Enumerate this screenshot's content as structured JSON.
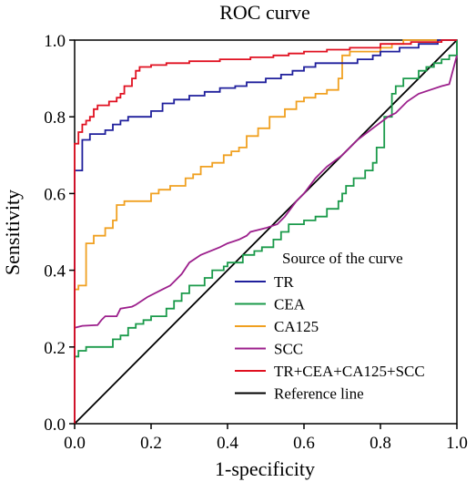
{
  "chart_data": {
    "type": "line",
    "title": "ROC curve",
    "xlabel": "1-specificity",
    "ylabel": "Sensitivity",
    "xlim": [
      0,
      1
    ],
    "ylim": [
      0,
      1
    ],
    "x_ticks": [
      "0.0",
      "0.2",
      "0.4",
      "0.6",
      "0.8",
      "1.0"
    ],
    "y_ticks": [
      "0.0",
      "0.2",
      "0.4",
      "0.6",
      "0.8",
      "1.0"
    ],
    "grid": false,
    "legend": {
      "title": "Source of the curve",
      "placement": "bottom-right"
    },
    "series": [
      {
        "name": "TR",
        "color": "#1f1f9c",
        "points": [
          [
            0,
            0
          ],
          [
            0,
            0.66
          ],
          [
            0.02,
            0.66
          ],
          [
            0.02,
            0.74
          ],
          [
            0.04,
            0.74
          ],
          [
            0.04,
            0.755
          ],
          [
            0.08,
            0.755
          ],
          [
            0.08,
            0.765
          ],
          [
            0.1,
            0.765
          ],
          [
            0.1,
            0.78
          ],
          [
            0.12,
            0.78
          ],
          [
            0.12,
            0.79
          ],
          [
            0.14,
            0.79
          ],
          [
            0.14,
            0.8
          ],
          [
            0.2,
            0.8
          ],
          [
            0.2,
            0.815
          ],
          [
            0.23,
            0.815
          ],
          [
            0.23,
            0.835
          ],
          [
            0.26,
            0.835
          ],
          [
            0.26,
            0.845
          ],
          [
            0.3,
            0.845
          ],
          [
            0.3,
            0.855
          ],
          [
            0.34,
            0.855
          ],
          [
            0.34,
            0.865
          ],
          [
            0.38,
            0.865
          ],
          [
            0.38,
            0.875
          ],
          [
            0.42,
            0.875
          ],
          [
            0.42,
            0.88
          ],
          [
            0.45,
            0.88
          ],
          [
            0.45,
            0.89
          ],
          [
            0.5,
            0.89
          ],
          [
            0.5,
            0.9
          ],
          [
            0.54,
            0.9
          ],
          [
            0.54,
            0.91
          ],
          [
            0.57,
            0.91
          ],
          [
            0.57,
            0.92
          ],
          [
            0.6,
            0.92
          ],
          [
            0.6,
            0.93
          ],
          [
            0.63,
            0.93
          ],
          [
            0.63,
            0.94
          ],
          [
            0.74,
            0.94
          ],
          [
            0.74,
            0.95
          ],
          [
            0.78,
            0.95
          ],
          [
            0.78,
            0.96
          ],
          [
            0.8,
            0.96
          ],
          [
            0.8,
            0.97
          ],
          [
            0.85,
            0.97
          ],
          [
            0.85,
            0.98
          ],
          [
            0.9,
            0.98
          ],
          [
            0.9,
            0.99
          ],
          [
            0.95,
            0.99
          ],
          [
            0.95,
            1.0
          ],
          [
            1.0,
            1.0
          ]
        ]
      },
      {
        "name": "CEA",
        "color": "#1a9a4a",
        "points": [
          [
            0,
            0.175
          ],
          [
            0.01,
            0.175
          ],
          [
            0.01,
            0.19
          ],
          [
            0.03,
            0.19
          ],
          [
            0.03,
            0.2
          ],
          [
            0.1,
            0.2
          ],
          [
            0.1,
            0.22
          ],
          [
            0.12,
            0.22
          ],
          [
            0.12,
            0.23
          ],
          [
            0.14,
            0.23
          ],
          [
            0.14,
            0.25
          ],
          [
            0.16,
            0.25
          ],
          [
            0.16,
            0.26
          ],
          [
            0.18,
            0.26
          ],
          [
            0.18,
            0.27
          ],
          [
            0.2,
            0.27
          ],
          [
            0.2,
            0.28
          ],
          [
            0.24,
            0.28
          ],
          [
            0.24,
            0.3
          ],
          [
            0.26,
            0.3
          ],
          [
            0.26,
            0.32
          ],
          [
            0.28,
            0.32
          ],
          [
            0.28,
            0.34
          ],
          [
            0.3,
            0.34
          ],
          [
            0.3,
            0.36
          ],
          [
            0.34,
            0.36
          ],
          [
            0.34,
            0.38
          ],
          [
            0.36,
            0.38
          ],
          [
            0.36,
            0.4
          ],
          [
            0.39,
            0.4
          ],
          [
            0.39,
            0.41
          ],
          [
            0.4,
            0.41
          ],
          [
            0.4,
            0.42
          ],
          [
            0.44,
            0.42
          ],
          [
            0.44,
            0.44
          ],
          [
            0.47,
            0.44
          ],
          [
            0.47,
            0.45
          ],
          [
            0.49,
            0.45
          ],
          [
            0.49,
            0.46
          ],
          [
            0.52,
            0.46
          ],
          [
            0.52,
            0.48
          ],
          [
            0.54,
            0.48
          ],
          [
            0.54,
            0.5
          ],
          [
            0.56,
            0.5
          ],
          [
            0.56,
            0.52
          ],
          [
            0.6,
            0.52
          ],
          [
            0.6,
            0.53
          ],
          [
            0.63,
            0.53
          ],
          [
            0.63,
            0.54
          ],
          [
            0.66,
            0.54
          ],
          [
            0.66,
            0.56
          ],
          [
            0.69,
            0.56
          ],
          [
            0.69,
            0.58
          ],
          [
            0.7,
            0.58
          ],
          [
            0.7,
            0.6
          ],
          [
            0.71,
            0.6
          ],
          [
            0.71,
            0.62
          ],
          [
            0.73,
            0.62
          ],
          [
            0.73,
            0.64
          ],
          [
            0.76,
            0.64
          ],
          [
            0.76,
            0.66
          ],
          [
            0.78,
            0.66
          ],
          [
            0.78,
            0.68
          ],
          [
            0.79,
            0.68
          ],
          [
            0.79,
            0.72
          ],
          [
            0.81,
            0.72
          ],
          [
            0.81,
            0.8
          ],
          [
            0.83,
            0.8
          ],
          [
            0.83,
            0.86
          ],
          [
            0.84,
            0.86
          ],
          [
            0.84,
            0.88
          ],
          [
            0.86,
            0.88
          ],
          [
            0.86,
            0.9
          ],
          [
            0.9,
            0.9
          ],
          [
            0.9,
            0.92
          ],
          [
            0.92,
            0.92
          ],
          [
            0.92,
            0.93
          ],
          [
            0.94,
            0.93
          ],
          [
            0.94,
            0.94
          ],
          [
            0.96,
            0.94
          ],
          [
            0.96,
            0.95
          ],
          [
            0.98,
            0.95
          ],
          [
            0.98,
            0.96
          ],
          [
            1.0,
            0.96
          ],
          [
            1.0,
            1.0
          ]
        ]
      },
      {
        "name": "CA125",
        "color": "#f0a020",
        "points": [
          [
            0,
            0
          ],
          [
            0,
            0.35
          ],
          [
            0.01,
            0.35
          ],
          [
            0.01,
            0.36
          ],
          [
            0.03,
            0.36
          ],
          [
            0.03,
            0.47
          ],
          [
            0.05,
            0.47
          ],
          [
            0.05,
            0.49
          ],
          [
            0.08,
            0.49
          ],
          [
            0.08,
            0.51
          ],
          [
            0.1,
            0.51
          ],
          [
            0.1,
            0.53
          ],
          [
            0.11,
            0.53
          ],
          [
            0.11,
            0.57
          ],
          [
            0.13,
            0.57
          ],
          [
            0.13,
            0.58
          ],
          [
            0.2,
            0.58
          ],
          [
            0.2,
            0.6
          ],
          [
            0.22,
            0.6
          ],
          [
            0.22,
            0.61
          ],
          [
            0.25,
            0.61
          ],
          [
            0.25,
            0.62
          ],
          [
            0.29,
            0.62
          ],
          [
            0.29,
            0.64
          ],
          [
            0.31,
            0.64
          ],
          [
            0.31,
            0.65
          ],
          [
            0.33,
            0.65
          ],
          [
            0.33,
            0.67
          ],
          [
            0.36,
            0.67
          ],
          [
            0.36,
            0.68
          ],
          [
            0.39,
            0.68
          ],
          [
            0.39,
            0.7
          ],
          [
            0.41,
            0.7
          ],
          [
            0.41,
            0.71
          ],
          [
            0.43,
            0.71
          ],
          [
            0.43,
            0.72
          ],
          [
            0.45,
            0.72
          ],
          [
            0.45,
            0.75
          ],
          [
            0.48,
            0.75
          ],
          [
            0.48,
            0.77
          ],
          [
            0.51,
            0.77
          ],
          [
            0.51,
            0.8
          ],
          [
            0.55,
            0.8
          ],
          [
            0.55,
            0.82
          ],
          [
            0.58,
            0.82
          ],
          [
            0.58,
            0.84
          ],
          [
            0.6,
            0.84
          ],
          [
            0.6,
            0.85
          ],
          [
            0.63,
            0.85
          ],
          [
            0.63,
            0.86
          ],
          [
            0.66,
            0.86
          ],
          [
            0.66,
            0.87
          ],
          [
            0.69,
            0.87
          ],
          [
            0.69,
            0.9
          ],
          [
            0.7,
            0.9
          ],
          [
            0.7,
            0.96
          ],
          [
            0.72,
            0.96
          ],
          [
            0.72,
            0.97
          ],
          [
            0.8,
            0.97
          ],
          [
            0.8,
            0.98
          ],
          [
            0.83,
            0.98
          ],
          [
            0.83,
            0.99
          ],
          [
            0.86,
            0.99
          ],
          [
            0.86,
            1.0
          ],
          [
            1.0,
            1.0
          ]
        ]
      },
      {
        "name": "SCC",
        "color": "#9c1f8c",
        "points": [
          [
            0,
            0.25
          ],
          [
            0.02,
            0.255
          ],
          [
            0.06,
            0.257
          ],
          [
            0.07,
            0.27
          ],
          [
            0.08,
            0.28
          ],
          [
            0.11,
            0.28
          ],
          [
            0.12,
            0.3
          ],
          [
            0.15,
            0.305
          ],
          [
            0.16,
            0.31
          ],
          [
            0.19,
            0.33
          ],
          [
            0.23,
            0.35
          ],
          [
            0.25,
            0.36
          ],
          [
            0.26,
            0.37
          ],
          [
            0.28,
            0.39
          ],
          [
            0.3,
            0.42
          ],
          [
            0.33,
            0.44
          ],
          [
            0.38,
            0.46
          ],
          [
            0.4,
            0.47
          ],
          [
            0.43,
            0.48
          ],
          [
            0.45,
            0.49
          ],
          [
            0.46,
            0.5
          ],
          [
            0.5,
            0.51
          ],
          [
            0.53,
            0.52
          ],
          [
            0.55,
            0.54
          ],
          [
            0.58,
            0.58
          ],
          [
            0.6,
            0.6
          ],
          [
            0.63,
            0.64
          ],
          [
            0.66,
            0.67
          ],
          [
            0.7,
            0.7
          ],
          [
            0.74,
            0.74
          ],
          [
            0.78,
            0.77
          ],
          [
            0.82,
            0.8
          ],
          [
            0.84,
            0.81
          ],
          [
            0.87,
            0.84
          ],
          [
            0.9,
            0.86
          ],
          [
            0.93,
            0.87
          ],
          [
            0.96,
            0.88
          ],
          [
            0.98,
            0.885
          ],
          [
            1.0,
            0.96
          ]
        ]
      },
      {
        "name": "TR+CEA+CA125+SCC",
        "color": "#e01020",
        "points": [
          [
            0,
            0
          ],
          [
            0,
            0.73
          ],
          [
            0.01,
            0.73
          ],
          [
            0.01,
            0.76
          ],
          [
            0.02,
            0.76
          ],
          [
            0.02,
            0.78
          ],
          [
            0.03,
            0.78
          ],
          [
            0.03,
            0.79
          ],
          [
            0.04,
            0.79
          ],
          [
            0.04,
            0.8
          ],
          [
            0.05,
            0.8
          ],
          [
            0.05,
            0.82
          ],
          [
            0.06,
            0.82
          ],
          [
            0.06,
            0.83
          ],
          [
            0.09,
            0.83
          ],
          [
            0.09,
            0.84
          ],
          [
            0.11,
            0.84
          ],
          [
            0.11,
            0.85
          ],
          [
            0.12,
            0.85
          ],
          [
            0.12,
            0.86
          ],
          [
            0.13,
            0.86
          ],
          [
            0.13,
            0.88
          ],
          [
            0.15,
            0.88
          ],
          [
            0.15,
            0.9
          ],
          [
            0.16,
            0.9
          ],
          [
            0.16,
            0.92
          ],
          [
            0.17,
            0.92
          ],
          [
            0.17,
            0.93
          ],
          [
            0.2,
            0.93
          ],
          [
            0.2,
            0.935
          ],
          [
            0.24,
            0.935
          ],
          [
            0.24,
            0.94
          ],
          [
            0.3,
            0.94
          ],
          [
            0.3,
            0.945
          ],
          [
            0.38,
            0.945
          ],
          [
            0.38,
            0.95
          ],
          [
            0.46,
            0.95
          ],
          [
            0.46,
            0.955
          ],
          [
            0.52,
            0.955
          ],
          [
            0.52,
            0.96
          ],
          [
            0.56,
            0.96
          ],
          [
            0.56,
            0.965
          ],
          [
            0.6,
            0.965
          ],
          [
            0.6,
            0.97
          ],
          [
            0.66,
            0.97
          ],
          [
            0.66,
            0.975
          ],
          [
            0.72,
            0.975
          ],
          [
            0.72,
            0.98
          ],
          [
            0.8,
            0.98
          ],
          [
            0.8,
            0.99
          ],
          [
            0.88,
            0.99
          ],
          [
            0.88,
            0.995
          ],
          [
            0.96,
            0.995
          ],
          [
            0.96,
            1.0
          ],
          [
            1.0,
            1.0
          ]
        ]
      },
      {
        "name": "Reference line",
        "color": "#000000",
        "points": [
          [
            0,
            0
          ],
          [
            1,
            1
          ]
        ]
      }
    ]
  }
}
